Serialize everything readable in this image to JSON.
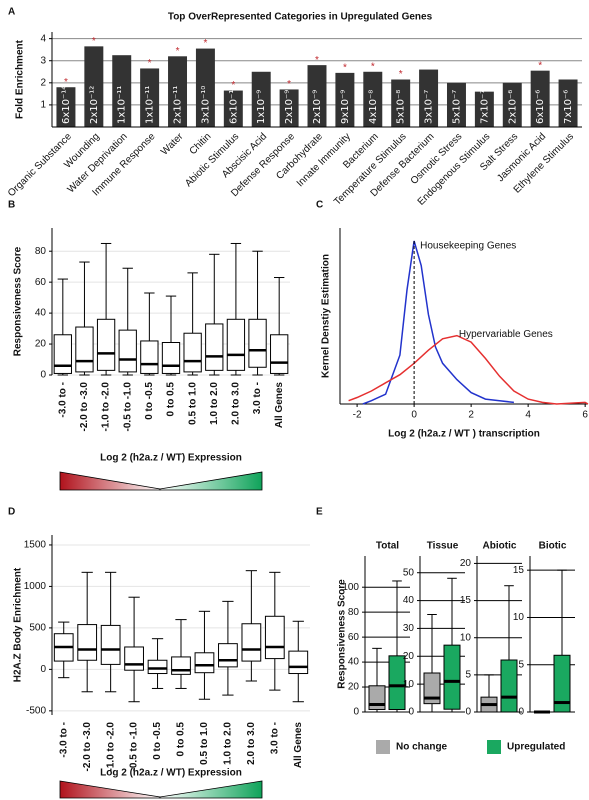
{
  "chart_data": [
    {
      "panel": "A",
      "type": "bar",
      "title": "Top OverRepresented Categories in Upregulated Genes",
      "ylabel": "Fold Enrichment",
      "categories": [
        "Organic Substance",
        "Wounding",
        "Water Deprivation",
        "Immune Response",
        "Water",
        "Chitin",
        "Abiotic Stimulus",
        "Abscisic Acid",
        "Defense Response",
        "Carbohydrate",
        "Innate Immunity",
        "Bacterium",
        "Temperature Stimulus",
        "Defense Bacterium",
        "Osmotic Stress",
        "Endogenous Stimulus",
        "Salt Stress",
        "Jasmonic Acid",
        "Ethylene Stimulus"
      ],
      "values": [
        1.8,
        3.65,
        3.25,
        2.65,
        3.2,
        3.55,
        1.65,
        2.5,
        1.7,
        2.8,
        2.45,
        2.5,
        2.15,
        2.6,
        2.0,
        1.6,
        2.0,
        2.55,
        2.15
      ],
      "p_values": [
        "6x10⁻¹⁴",
        "2x10⁻¹²",
        "1x10⁻¹¹",
        "1x10⁻¹¹",
        "2x10⁻¹¹",
        "3x10⁻¹⁰",
        "6x10⁻¹⁰",
        "1x10⁻⁹",
        "2x10⁻⁹",
        "2x10⁻⁹",
        "9x10⁻⁹",
        "4x10⁻⁸",
        "5x10⁻⁸",
        "3x10⁻⁷",
        "5x10⁻⁷",
        "7x10⁻⁷",
        "2x10⁻⁶",
        "6x10⁻⁶",
        "7x10⁻⁶"
      ],
      "starred": [
        true,
        true,
        false,
        true,
        true,
        true,
        true,
        false,
        true,
        true,
        true,
        true,
        true,
        false,
        false,
        false,
        false,
        true,
        false
      ],
      "star": "*",
      "color": "#333333",
      "star_color": "#c0262c",
      "ylim": [
        0,
        4.3
      ],
      "yticks": [
        1,
        2,
        3,
        4
      ],
      "grid": true
    },
    {
      "panel": "B",
      "type": "box",
      "ylabel": "Responsiveness Score",
      "xlabel": "Log 2 (h2a.z / WT) Expression",
      "categories": [
        "-3.0 to -",
        "-2.0 to -3.0",
        "-1.0 to -2.0",
        "-0.5 to -1.0",
        "0 to -0.5",
        "0 to 0.5",
        "0.5 to 1.0",
        "1.0 to 2.0",
        "2.0 to 3.0",
        "3.0 to -",
        "All Genes"
      ],
      "values": [
        [
          0,
          1,
          6,
          26,
          62
        ],
        [
          0,
          2,
          9,
          31,
          73
        ],
        [
          0,
          3,
          14,
          36,
          85
        ],
        [
          0,
          2,
          10,
          29,
          69
        ],
        [
          0,
          1,
          7,
          22,
          53
        ],
        [
          0,
          1,
          6,
          21,
          51
        ],
        [
          0,
          2,
          9,
          27,
          66
        ],
        [
          0,
          3,
          12,
          33,
          78
        ],
        [
          0,
          3,
          13,
          36,
          85
        ],
        [
          0,
          5,
          16,
          36,
          80
        ],
        [
          0,
          1,
          8,
          26,
          63
        ]
      ],
      "color": "#ffffff",
      "ylim": [
        0,
        95
      ],
      "yticks": [
        0,
        20,
        40,
        60,
        80
      ],
      "grid": true
    },
    {
      "panel": "C",
      "type": "line",
      "ylabel": "Kernel Denstiy Estimation",
      "xlabel": "Log 2 (h2a.z / WT ) transcription",
      "xlim": [
        -2.6,
        6.1
      ],
      "xticks": [
        -2,
        0,
        2,
        4,
        6
      ],
      "ylim": [
        0,
        1.08
      ],
      "vline": 0,
      "series": [
        {
          "name": "Housekeeping Genes",
          "color": "#2233cc",
          "x": [
            -1.8,
            -1.5,
            -1,
            -0.5,
            -0.25,
            0,
            0.25,
            0.5,
            0.75,
            1,
            1.5,
            2,
            2.5,
            3,
            3.5
          ],
          "values": [
            0,
            0.02,
            0.06,
            0.3,
            0.7,
            1.0,
            0.85,
            0.55,
            0.35,
            0.25,
            0.15,
            0.07,
            0.03,
            0.02,
            0.01
          ]
        },
        {
          "name": "Hypervariable Genes",
          "color": "#e53030",
          "x": [
            -2.3,
            -2,
            -1.5,
            -1,
            -0.5,
            0,
            0.5,
            1,
            1.5,
            2,
            2.5,
            3,
            3.5,
            4,
            4.5,
            5,
            6,
            6.1
          ],
          "values": [
            0.02,
            0.04,
            0.08,
            0.13,
            0.18,
            0.25,
            0.33,
            0.4,
            0.42,
            0.38,
            0.28,
            0.17,
            0.08,
            0.03,
            0.01,
            0,
            0.01,
            0
          ]
        }
      ]
    },
    {
      "panel": "D",
      "type": "box",
      "ylabel": "H2A.Z Body Enrichment",
      "xlabel": "Log 2 (h2a.z / WT) Expression",
      "categories": [
        "-3.0 to -",
        "-2.0 to -3.0",
        "-1.0 to -2.0",
        "-0.5 to -1.0",
        "0 to -0.5",
        "0 to 0.5",
        "0.5 to 1.0",
        "1.0 to 2.0",
        "2.0 to 3.0",
        "3.0 to -",
        "All Genes"
      ],
      "values": [
        [
          -100,
          100,
          270,
          430,
          570
        ],
        [
          -270,
          110,
          240,
          540,
          1170
        ],
        [
          -270,
          60,
          240,
          530,
          1170
        ],
        [
          -390,
          -10,
          60,
          270,
          870
        ],
        [
          -230,
          -50,
          10,
          110,
          370
        ],
        [
          -230,
          -60,
          -10,
          150,
          600
        ],
        [
          -360,
          -40,
          50,
          200,
          700
        ],
        [
          -310,
          30,
          110,
          310,
          820
        ],
        [
          -140,
          100,
          240,
          550,
          1190
        ],
        [
          -250,
          130,
          270,
          640,
          1170
        ],
        [
          -390,
          -50,
          30,
          220,
          580
        ]
      ],
      "color": "#ffffff",
      "ylim": [
        -550,
        1620
      ],
      "yticks": [
        -500,
        0,
        500,
        1000,
        1500
      ],
      "grid": true
    },
    {
      "panel": "E",
      "type": "box-facets",
      "ylabel": "Responsiveness Score",
      "series": [
        {
          "name": "No change",
          "color": "#aaaaaa"
        },
        {
          "name": "Upregulated",
          "color": "#1aa860"
        }
      ],
      "facets": [
        {
          "title": "Total",
          "ylim": [
            0,
            125
          ],
          "yticks": [
            0,
            20,
            40,
            60,
            80,
            100
          ],
          "values": [
            [
              0,
              2,
              6,
              21,
              51
            ],
            [
              0,
              2,
              21,
              45,
              105
            ]
          ]
        },
        {
          "title": "Tissue",
          "ylim": [
            0,
            56
          ],
          "yticks": [
            0,
            10,
            20,
            30,
            40,
            50
          ],
          "values": [
            [
              0,
              3,
              5,
              14,
              35
            ],
            [
              0,
              1,
              11,
              24,
              48
            ]
          ]
        },
        {
          "title": "Abiotic",
          "ylim": [
            0,
            21
          ],
          "yticks": [
            0,
            5,
            10,
            15,
            20
          ],
          "values": [
            [
              0,
              0,
              1,
              2,
              5
            ],
            [
              0,
              0,
              2,
              7,
              17
            ]
          ]
        },
        {
          "title": "Biotic",
          "ylim": [
            0,
            16.5
          ],
          "yticks": [
            0,
            5,
            10,
            15
          ],
          "values": [
            [
              0,
              0,
              0,
              0,
              0
            ],
            [
              0,
              0,
              1,
              6,
              15
            ]
          ]
        }
      ],
      "grid": true
    }
  ]
}
